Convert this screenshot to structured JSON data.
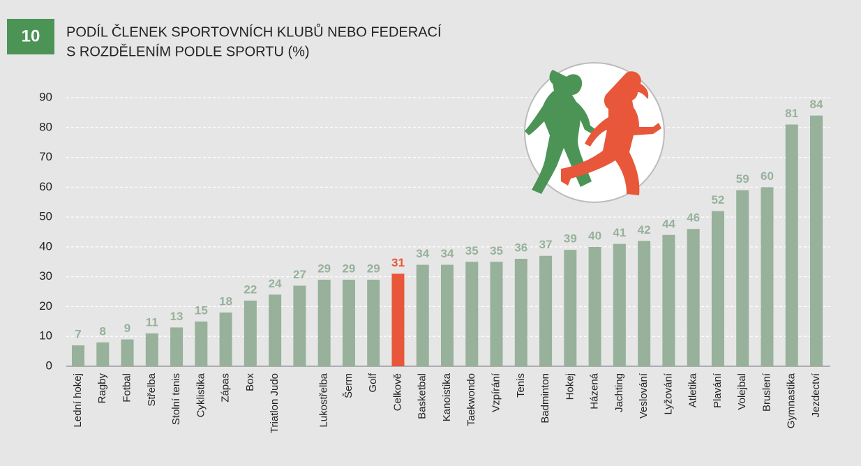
{
  "chart_data": {
    "type": "bar",
    "figure_number": "10",
    "title": [
      "PODÍL ČLENEK SPORTOVNÍCH KLUBŮ NEBO FEDERACÍ",
      "S ROZDĚLENÍM PODLE SPORTU (%)"
    ],
    "categories": [
      "Lední hokej",
      "Ragby",
      "Fotbal",
      "Střelba",
      "Stolní tenis",
      "Cyklistika",
      "Zápas",
      "Box",
      "Triatlon Judo",
      null,
      "Lukostřelba",
      "Šerm",
      "Golf",
      "Celkově",
      "Basketbal",
      "Kanoistika",
      "Taekwondo",
      "Vzpírání",
      "Tenis",
      "Badminton",
      "Hokej",
      "Házená",
      "Jachting",
      "Veslování",
      "Lyžování",
      "Atletika",
      "Plavání",
      "Volejbal",
      "Bruslení",
      "Gymnastika",
      "Jezdectví"
    ],
    "values": [
      7,
      8,
      9,
      11,
      13,
      15,
      18,
      22,
      24,
      27,
      29,
      29,
      29,
      31,
      34,
      34,
      35,
      35,
      36,
      37,
      39,
      40,
      41,
      42,
      44,
      46,
      52,
      59,
      60,
      81,
      84
    ],
    "colors": [
      "#97b19b",
      "#97b19b",
      "#97b19b",
      "#97b19b",
      "#97b19b",
      "#97b19b",
      "#97b19b",
      "#97b19b",
      "#97b19b",
      "#97b19b",
      "#97b19b",
      "#97b19b",
      "#97b19b",
      "#e8573a",
      "#97b19b",
      "#97b19b",
      "#97b19b",
      "#97b19b",
      "#97b19b",
      "#97b19b",
      "#97b19b",
      "#97b19b",
      "#97b19b",
      "#97b19b",
      "#97b19b",
      "#97b19b",
      "#97b19b",
      "#97b19b",
      "#97b19b",
      "#97b19b",
      "#97b19b"
    ],
    "ylim": [
      0,
      90
    ],
    "yticks": [
      0,
      10,
      20,
      30,
      40,
      50,
      60,
      70,
      80,
      90
    ],
    "grid": true
  }
}
